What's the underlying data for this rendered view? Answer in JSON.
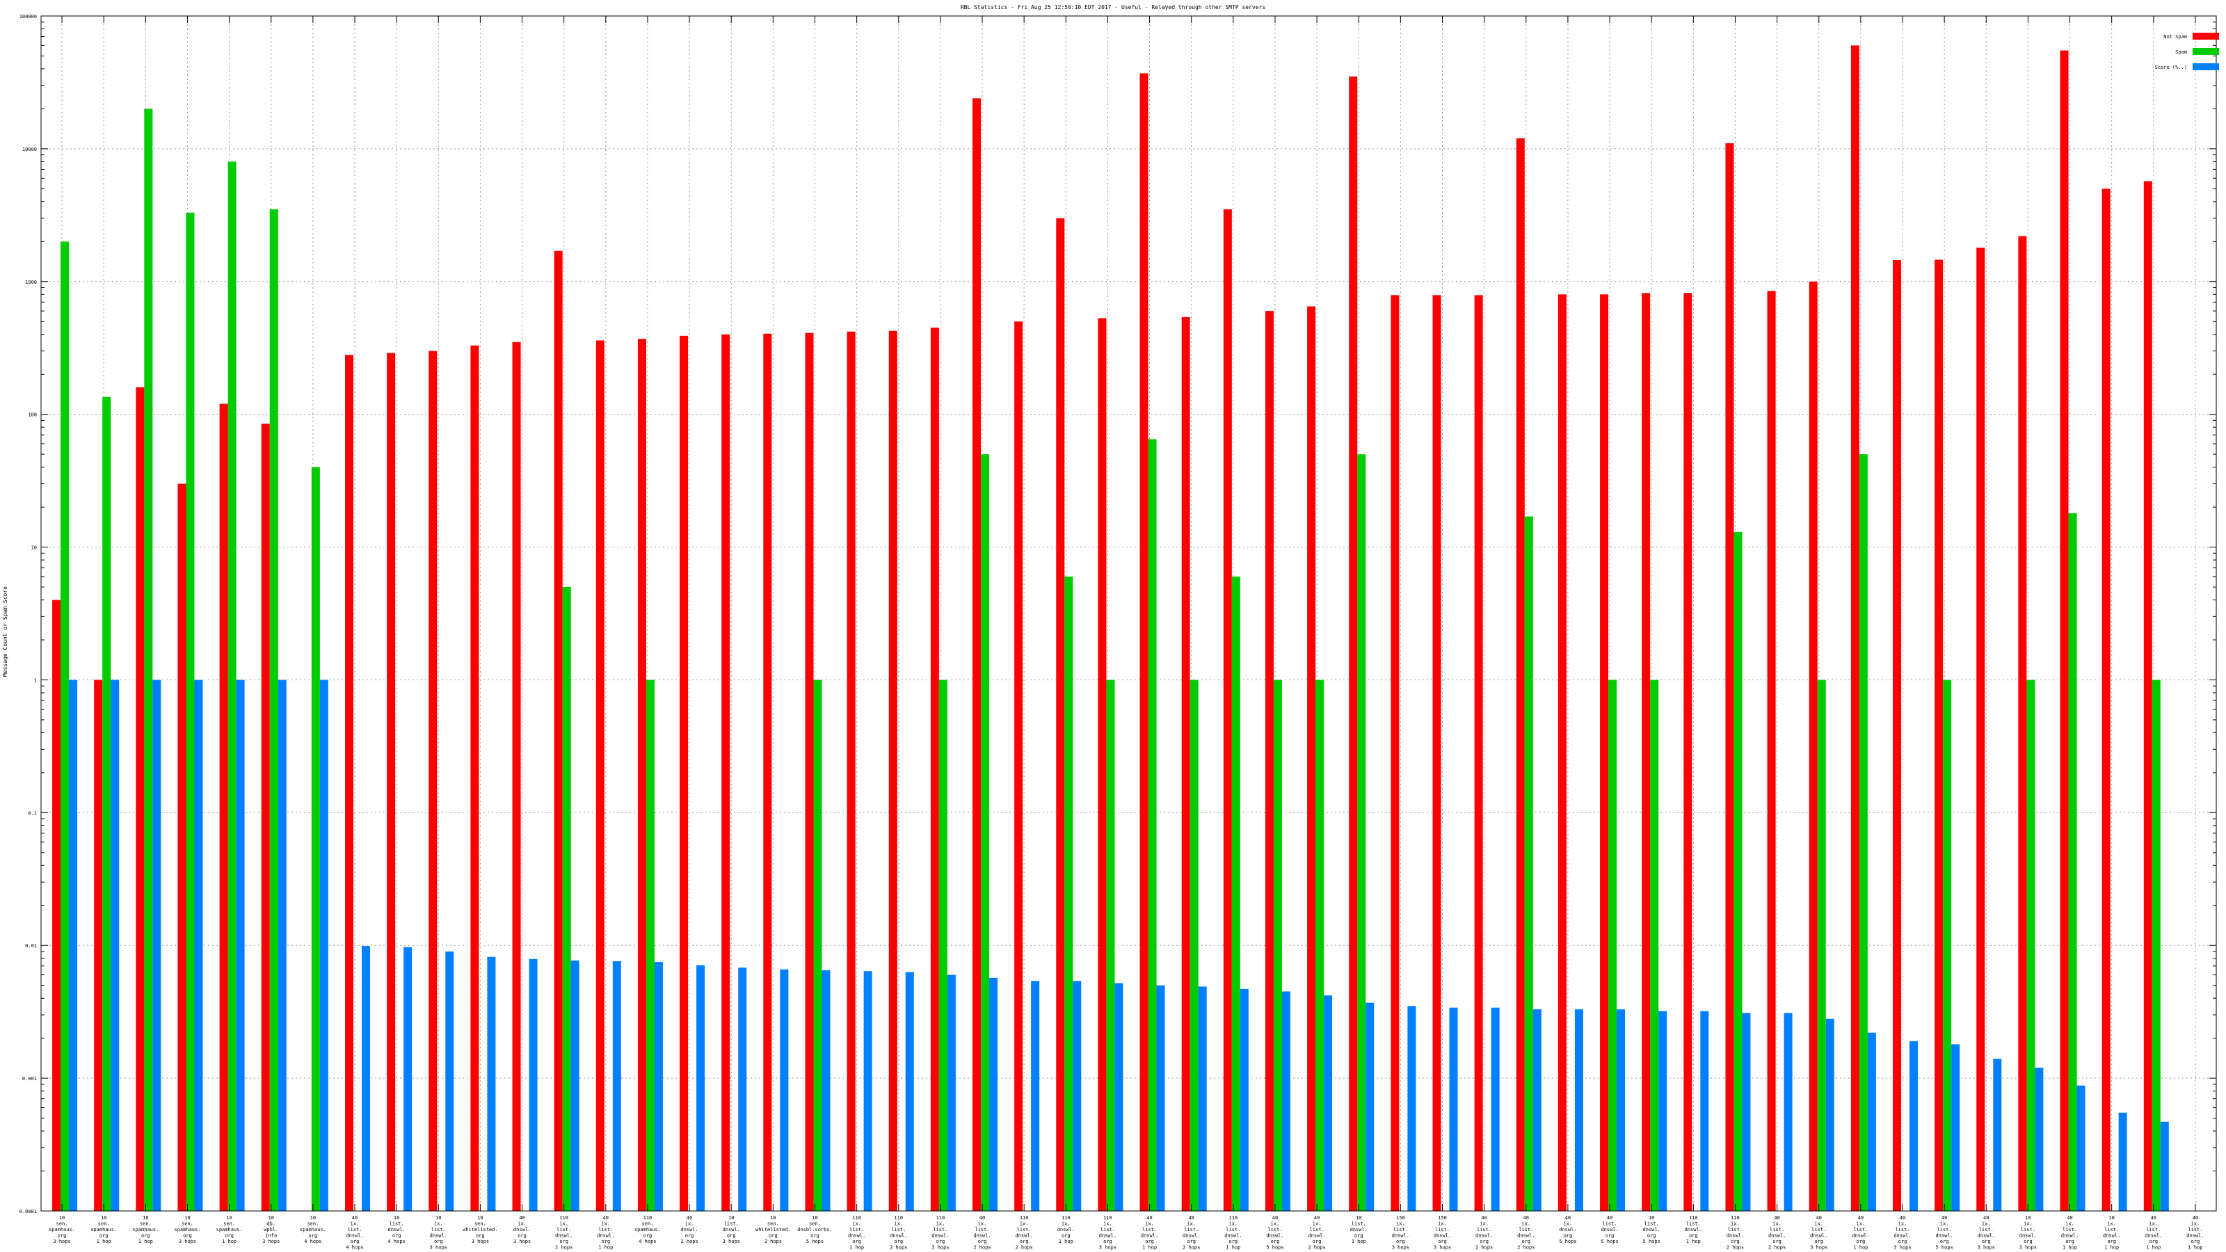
{
  "chart_data": {
    "type": "bar",
    "title": "RBL Statistics - Fri Aug 25 12:50:10 EDT 2017 - Useful - Relayed through other SMTP servers",
    "ylabel": "Message Count or Spam Score",
    "xlabel": "",
    "yscale": "log",
    "ylim": [
      0.0001,
      100000
    ],
    "ytick_labels": [
      "0.0001",
      "0.001",
      "0.01",
      "0.1",
      "1",
      "10",
      "100",
      "1000",
      "10000",
      "100000"
    ],
    "grid": true,
    "legend_position": "top-right",
    "colors": {
      "not_spam": "#ff0000",
      "spam": "#00cc00",
      "score": "#0080ff"
    },
    "categories": [
      [
        "10",
        "sen.",
        "spamhaus.",
        "org",
        "3 hops"
      ],
      [
        "10",
        "sen.",
        "spamhaus.",
        "org",
        "1 hop"
      ],
      [
        "10",
        "sen.",
        "spamhaus.",
        "org",
        "1 hop"
      ],
      [
        "10",
        "sen.",
        "spamhaus.",
        "org",
        "3 hops"
      ],
      [
        "10",
        "sen.",
        "spamhaus.",
        "org",
        "1 hop"
      ],
      [
        "10",
        "db.",
        "wpbl.",
        "info",
        "3 hops"
      ],
      [
        "10",
        "sen.",
        "spamhaus.",
        "org",
        "4 hops"
      ],
      [
        "40",
        "ix.",
        "list.",
        "dnswl.",
        "org",
        "4 hops"
      ],
      [
        "10",
        "list.",
        "dnswl.",
        "org",
        "4 hops"
      ],
      [
        "10",
        "ix.",
        "list.",
        "dnswl.",
        "org",
        "3 hops"
      ],
      [
        "10",
        "sen.",
        "whitelisted.",
        "org",
        "3 hops"
      ],
      [
        "40",
        "ix.",
        "dnswl.",
        "org",
        "3 hops"
      ],
      [
        "110",
        "ix.",
        "list.",
        "dnswl.",
        "org",
        "2 hops"
      ],
      [
        "40",
        "ix.",
        "list.",
        "dnswl.",
        "org",
        "1 hop"
      ],
      [
        "110",
        "sen.",
        "spamhaus.",
        "org",
        "4 hops"
      ],
      [
        "40",
        "ix.",
        "dnswl.",
        "org",
        "2 hops"
      ],
      [
        "10",
        "list.",
        "dnswl.",
        "org",
        "3 hops"
      ],
      [
        "10",
        "sen.",
        "whitelisted.",
        "org",
        "2 hops"
      ],
      [
        "10",
        "sen.",
        "dnsbl.sorbs.",
        "org",
        "5 hops"
      ],
      [
        "110",
        "ix.",
        "list.",
        "dnswl.",
        "org",
        "1 hop"
      ],
      [
        "110",
        "ix.",
        "list.",
        "dnswl.",
        "org",
        "2 hops"
      ],
      [
        "110",
        "ix.",
        "list.",
        "dnswl.",
        "org",
        "3 hops"
      ],
      [
        "40",
        "ix.",
        "list.",
        "dnswl.",
        "org",
        "2 hops"
      ],
      [
        "110",
        "ix.",
        "list.",
        "dnswl.",
        "org",
        "2 hops"
      ],
      [
        "110",
        "ix.",
        "dnswl.",
        "org",
        "1 hop"
      ],
      [
        "110",
        "ix.",
        "list.",
        "dnswl.",
        "org",
        "3 hops"
      ],
      [
        "40",
        "ix.",
        "list.",
        "dnswl.",
        "org",
        "1 hop"
      ],
      [
        "40",
        "ix.",
        "list.",
        "dnswl.",
        "org",
        "2 hops"
      ],
      [
        "110",
        "ix.",
        "list.",
        "dnswl.",
        "org",
        "1 hop"
      ],
      [
        "40",
        "ix.",
        "list.",
        "dnswl.",
        "org",
        "5 hops"
      ],
      [
        "40",
        "ix.",
        "list.",
        "dnswl.",
        "org",
        "2 hops"
      ],
      [
        "10",
        "list.",
        "dnswl.",
        "org",
        "1 hop"
      ],
      [
        "150",
        "ix.",
        "list.",
        "dnswl.",
        "org",
        "3 hops"
      ],
      [
        "150",
        "ix.",
        "list.",
        "dnswl.",
        "org",
        "3 hops"
      ],
      [
        "40",
        "ix.",
        "list.",
        "dnswl.",
        "org",
        "2 hops"
      ],
      [
        "40",
        "ix.",
        "list.",
        "dnswl.",
        "org",
        "2 hops"
      ],
      [
        "40",
        "ix.",
        "dnswl.",
        "org",
        "5 hops"
      ],
      [
        "40",
        "list.",
        "dnswl.",
        "org",
        "5 hops"
      ],
      [
        "10",
        "list.",
        "dnswl.",
        "org",
        "5 hops"
      ],
      [
        "110",
        "list.",
        "dnswl.",
        "org",
        "1 hop"
      ],
      [
        "110",
        "ix.",
        "list.",
        "dnswl.",
        "org",
        "2 hops"
      ],
      [
        "40",
        "ix.",
        "list.",
        "dnswl.",
        "org",
        "2 hops"
      ],
      [
        "40",
        "ix.",
        "list.",
        "dnswl.",
        "org",
        "3 hops"
      ],
      [
        "40",
        "ix.",
        "list.",
        "dnswl.",
        "org",
        "1 hop"
      ],
      [
        "40",
        "ix.",
        "list.",
        "dnswl.",
        "org",
        "3 hops"
      ],
      [
        "40",
        "ix.",
        "list.",
        "dnswl.",
        "org",
        "5 hops"
      ],
      [
        "40",
        "ix.",
        "list.",
        "dnswl.",
        "org",
        "3 hops"
      ],
      [
        "10",
        "ix.",
        "list.",
        "dnswl.",
        "org",
        "3 hops"
      ],
      [
        "40",
        "ix.",
        "list.",
        "dnswl.",
        "org",
        "1 hop"
      ],
      [
        "10",
        "ix.",
        "list.",
        "dnswl.",
        "org",
        "1 hop"
      ],
      [
        "40",
        "ix.",
        "list.",
        "dnswl.",
        "org",
        "1 hop"
      ],
      [
        "40",
        "ix.",
        "list.",
        "dnswl.",
        "org",
        "1 hop"
      ]
    ],
    "series": [
      {
        "name": "Not Spam",
        "key": "not_spam",
        "values": [
          4,
          1,
          160,
          30,
          120,
          85,
          null,
          280,
          290,
          300,
          330,
          350,
          1700,
          360,
          370,
          390,
          400,
          405,
          410,
          420,
          425,
          450,
          24000,
          500,
          3000,
          530,
          37000,
          540,
          3500,
          600,
          650,
          35000,
          790,
          790,
          790,
          12000,
          800,
          800,
          820,
          820,
          11000,
          850,
          1000,
          60000,
          1450,
          1460,
          1800,
          2200,
          55000,
          5000,
          5700,
          null
        ]
      },
      {
        "name": "Spam",
        "key": "spam",
        "values": [
          2000,
          135,
          20000,
          3300,
          8000,
          3500,
          40,
          null,
          null,
          null,
          null,
          null,
          5,
          null,
          1,
          null,
          null,
          null,
          1,
          null,
          null,
          1,
          50,
          null,
          6,
          1,
          65,
          1,
          6,
          1,
          1,
          50,
          null,
          null,
          null,
          17,
          null,
          1,
          1,
          null,
          13,
          null,
          1,
          50,
          null,
          1,
          null,
          1,
          18,
          null,
          1,
          null
        ]
      },
      {
        "name": "Score (%..)",
        "key": "score",
        "values": [
          1,
          1,
          1,
          1,
          1,
          1,
          1,
          0.0099,
          0.0097,
          0.009,
          0.0082,
          0.0079,
          0.0077,
          0.0076,
          0.0075,
          0.0071,
          0.0068,
          0.0066,
          0.0065,
          0.0064,
          0.0063,
          0.006,
          0.0057,
          0.0054,
          0.0054,
          0.0052,
          0.005,
          0.0049,
          0.0047,
          0.0045,
          0.0042,
          0.0037,
          0.0035,
          0.0034,
          0.0034,
          0.0033,
          0.0033,
          0.0033,
          0.0032,
          0.0032,
          0.0031,
          0.0031,
          0.0028,
          0.0022,
          0.0019,
          0.0018,
          0.0014,
          0.0012,
          0.00088,
          0.00055,
          0.00047,
          null
        ]
      }
    ]
  }
}
